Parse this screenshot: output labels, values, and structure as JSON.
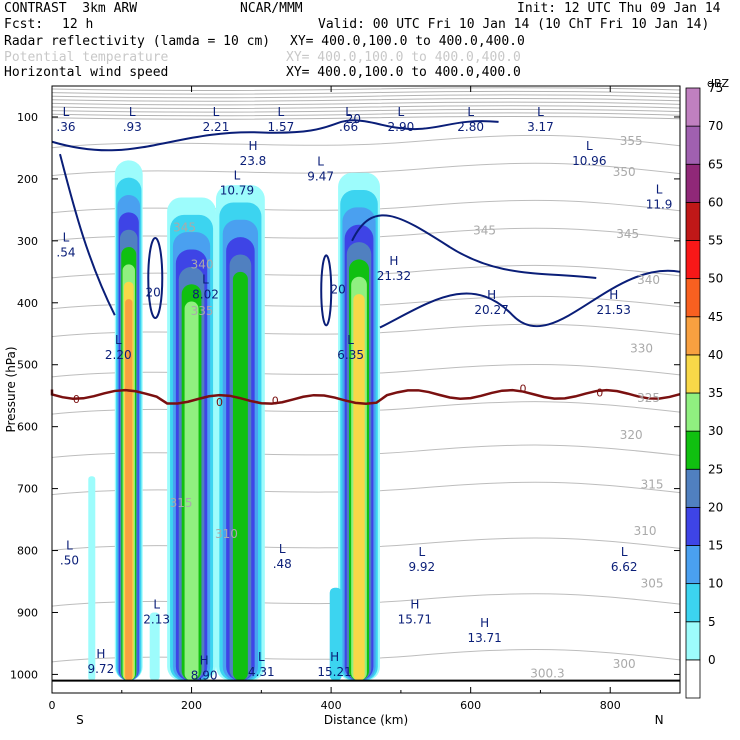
{
  "header": {
    "model": "CONTRAST  3km ARW",
    "org": "NCAR/MMM",
    "init": "Init: 12 UTC Thu 09 Jan 14",
    "fcst_label": "Fcst:",
    "fcst_value": "12 h",
    "valid": "Valid: 00 UTC Fri 10 Jan 14 (10 ChT Fri 10 Jan 14)",
    "fields": [
      {
        "name": "Radar reflectivity (lamda = 10 cm)",
        "range": "XY= 400.0,100.0 to 400.0,400.0"
      },
      {
        "name": "Potential temperature",
        "range": "XY= 400.0,100.0 to 400.0,400.0"
      },
      {
        "name": "Horizontal wind speed",
        "range": "XY= 400.0,100.0 to 400.0,400.0"
      }
    ]
  },
  "chart_data": {
    "type": "cross-section",
    "xlabel": "Distance (km)",
    "ylabel": "Pressure (hPa)",
    "xlim": [
      0,
      900
    ],
    "ylim": [
      1030,
      50
    ],
    "xticks": [
      0,
      200,
      400,
      600,
      800
    ],
    "yticks": [
      100,
      200,
      300,
      400,
      500,
      600,
      700,
      800,
      900,
      1000
    ],
    "left_end": "S",
    "right_end": "N",
    "colorbar": {
      "unit": "dBZ",
      "levels": [
        0,
        5,
        10,
        15,
        20,
        25,
        30,
        35,
        40,
        45,
        50,
        55,
        60,
        65,
        70,
        75
      ],
      "colors": [
        "#ffffff",
        "#9dfcfc",
        "#3cd4f0",
        "#4aa0f0",
        "#3e44e6",
        "#5080c0",
        "#10c010",
        "#90f080",
        "#f8d848",
        "#f8a040",
        "#f86020",
        "#f81818",
        "#c01818",
        "#902878",
        "#a060b0",
        "#c080c0"
      ]
    },
    "reflectivity_columns": [
      {
        "x": [
          90,
          130
        ],
        "top_hPa": 170,
        "max_dbz": 45
      },
      {
        "x": [
          165,
          235
        ],
        "top_hPa": 230,
        "max_dbz": 35
      },
      {
        "x": [
          235,
          305
        ],
        "top_hPa": 210,
        "max_dbz": 30
      },
      {
        "x": [
          410,
          470
        ],
        "top_hPa": 190,
        "max_dbz": 40
      }
    ],
    "freezing_level_label": "0",
    "theta_labels": [
      "355",
      "350",
      "345",
      "345",
      "345",
      "340",
      "340",
      "335",
      "330",
      "325",
      "320",
      "315",
      "315",
      "310",
      "310",
      "305",
      "300",
      "300.3"
    ],
    "wind_labels": [
      {
        "x": 20,
        "p": 110,
        "kind": "L",
        "value": ".36"
      },
      {
        "x": 115,
        "p": 110,
        "kind": "L",
        "value": ".93"
      },
      {
        "x": 235,
        "p": 110,
        "kind": "L",
        "value": "2.21"
      },
      {
        "x": 328,
        "p": 110,
        "kind": "L",
        "value": "1.57"
      },
      {
        "x": 425,
        "p": 110,
        "kind": "L",
        "value": ".66"
      },
      {
        "x": 500,
        "p": 110,
        "kind": "L",
        "value": "2.90"
      },
      {
        "x": 600,
        "p": 110,
        "kind": "L",
        "value": "2.80"
      },
      {
        "x": 700,
        "p": 110,
        "kind": "L",
        "value": "3.17"
      },
      {
        "x": 288,
        "p": 165,
        "kind": "H",
        "value": "23.8"
      },
      {
        "x": 385,
        "p": 190,
        "kind": "L",
        "value": "9.47"
      },
      {
        "x": 265,
        "p": 212,
        "kind": "L",
        "value": "10.79"
      },
      {
        "x": 770,
        "p": 165,
        "kind": "L",
        "value": "10.96"
      },
      {
        "x": 870,
        "p": 235,
        "kind": "L",
        "value": "11.9"
      },
      {
        "x": 20,
        "p": 312,
        "kind": "L",
        "value": ".54"
      },
      {
        "x": 490,
        "p": 350,
        "kind": "H",
        "value": "21.32"
      },
      {
        "x": 630,
        "p": 405,
        "kind": "H",
        "value": "20.27"
      },
      {
        "x": 805,
        "p": 405,
        "kind": "H",
        "value": "21.53"
      },
      {
        "x": 220,
        "p": 380,
        "kind": "L",
        "value": "8.02"
      },
      {
        "x": 95,
        "p": 478,
        "kind": "L",
        "value": "2.20"
      },
      {
        "x": 428,
        "p": 478,
        "kind": "L",
        "value": "6.35"
      },
      {
        "x": 25,
        "p": 810,
        "kind": "L",
        "value": ".50"
      },
      {
        "x": 530,
        "p": 820,
        "kind": "L",
        "value": "9.92"
      },
      {
        "x": 820,
        "p": 820,
        "kind": "L",
        "value": "6.62"
      },
      {
        "x": 330,
        "p": 815,
        "kind": "L",
        "value": ".48"
      },
      {
        "x": 150,
        "p": 905,
        "kind": "L",
        "value": "2.13"
      },
      {
        "x": 520,
        "p": 905,
        "kind": "H",
        "value": "15.71"
      },
      {
        "x": 620,
        "p": 935,
        "kind": "H",
        "value": "13.71"
      },
      {
        "x": 70,
        "p": 985,
        "kind": "H",
        "value": "9.72"
      },
      {
        "x": 218,
        "p": 995,
        "kind": "H",
        "value": "8.90"
      },
      {
        "x": 300,
        "p": 990,
        "kind": "L",
        "value": "4.31"
      },
      {
        "x": 405,
        "p": 990,
        "kind": "H",
        "value": "15.21"
      }
    ],
    "wind_contour_labels": [
      "20",
      "20",
      "20"
    ]
  }
}
